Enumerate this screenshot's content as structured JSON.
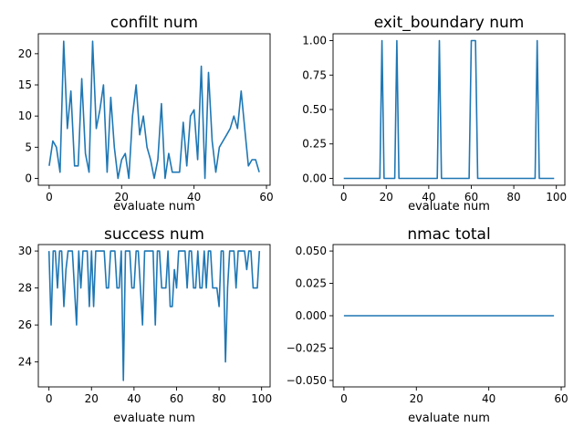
{
  "chart_data": [
    {
      "type": "line",
      "title": "confilt num",
      "xlabel": "evaluate num",
      "ylabel": "",
      "xlim": [
        -3,
        61
      ],
      "ylim": [
        -1.1,
        23.2
      ],
      "xticks": [
        0,
        20,
        40,
        60
      ],
      "yticks": [
        0,
        5,
        10,
        15,
        20
      ],
      "ytick_labels": [
        "0",
        "5",
        "10",
        "15",
        "20"
      ],
      "grid": false,
      "series": [
        {
          "name": "",
          "color": "#1f77b4",
          "x": [
            0,
            1,
            2,
            3,
            4,
            5,
            6,
            7,
            8,
            9,
            10,
            11,
            12,
            13,
            14,
            15,
            16,
            17,
            18,
            19,
            20,
            21,
            22,
            23,
            24,
            25,
            26,
            27,
            28,
            29,
            30,
            31,
            32,
            33,
            34,
            35,
            36,
            37,
            38,
            39,
            40,
            41,
            42,
            43,
            44,
            45,
            46,
            47,
            48,
            49,
            50,
            51,
            52,
            53,
            54,
            55,
            56,
            57,
            58
          ],
          "values": [
            2,
            6,
            5,
            1,
            22,
            8,
            14,
            2,
            2,
            16,
            4,
            1,
            22,
            8,
            11,
            15,
            1,
            13,
            5,
            0,
            3,
            4,
            0,
            10,
            15,
            7,
            10,
            5,
            3,
            0,
            3,
            12,
            0,
            4,
            1,
            1,
            1,
            9,
            2,
            10,
            11,
            3,
            18,
            0,
            17,
            6,
            1,
            5,
            6,
            7,
            8,
            10,
            8,
            14,
            8,
            2,
            3,
            3,
            1
          ]
        }
      ]
    },
    {
      "type": "line",
      "title": "exit_boundary num",
      "xlabel": "evaluate num",
      "ylabel": "",
      "xlim": [
        -5,
        104
      ],
      "ylim": [
        -0.05,
        1.05
      ],
      "xticks": [
        0,
        20,
        40,
        60,
        80,
        100
      ],
      "yticks": [
        0,
        0.25,
        0.5,
        0.75,
        1.0
      ],
      "ytick_labels": [
        "0.00",
        "0.25",
        "0.50",
        "0.75",
        "1.00"
      ],
      "grid": false,
      "series": [
        {
          "name": "",
          "color": "#1f77b4",
          "x": [
            0,
            17,
            18,
            19,
            24,
            25,
            26,
            44,
            45,
            46,
            59,
            60,
            62,
            63,
            90,
            91,
            92,
            99
          ],
          "values": [
            0,
            0,
            1,
            0,
            0,
            1,
            0,
            0,
            1,
            0,
            0,
            1,
            1,
            0,
            0,
            1,
            0,
            0
          ]
        }
      ]
    },
    {
      "type": "line",
      "title": "success num",
      "xlabel": "evaluate num",
      "ylabel": "",
      "xlim": [
        -5,
        104
      ],
      "ylim": [
        22.65,
        30.35
      ],
      "xticks": [
        0,
        20,
        40,
        60,
        80,
        100
      ],
      "yticks": [
        24,
        26,
        28,
        30
      ],
      "ytick_labels": [
        "24",
        "26",
        "28",
        "30"
      ],
      "grid": false,
      "series": [
        {
          "name": "",
          "color": "#1f77b4",
          "x": [
            0,
            1,
            2,
            3,
            4,
            5,
            6,
            7,
            8,
            9,
            10,
            11,
            12,
            13,
            14,
            15,
            16,
            17,
            18,
            19,
            20,
            21,
            22,
            23,
            24,
            25,
            26,
            27,
            28,
            29,
            30,
            31,
            32,
            33,
            34,
            35,
            36,
            37,
            38,
            39,
            40,
            41,
            42,
            43,
            44,
            45,
            46,
            47,
            48,
            49,
            50,
            51,
            52,
            53,
            54,
            55,
            56,
            57,
            58,
            59,
            60,
            61,
            62,
            63,
            64,
            65,
            66,
            67,
            68,
            69,
            70,
            71,
            72,
            73,
            74,
            75,
            76,
            77,
            78,
            79,
            80,
            81,
            82,
            83,
            84,
            85,
            86,
            87,
            88,
            89,
            90,
            91,
            92,
            93,
            94,
            95,
            96,
            97,
            98,
            99
          ],
          "values": [
            30,
            26,
            30,
            30,
            28,
            30,
            30,
            27,
            29,
            30,
            30,
            30,
            28,
            26,
            30,
            28,
            30,
            30,
            30,
            27,
            30,
            27,
            30,
            30,
            30,
            30,
            30,
            28,
            28,
            30,
            30,
            30,
            28,
            28,
            30,
            23,
            30,
            30,
            30,
            28,
            28,
            30,
            30,
            28,
            26,
            30,
            30,
            30,
            30,
            30,
            26,
            30,
            30,
            28,
            28,
            28,
            30,
            27,
            27,
            29,
            28,
            30,
            30,
            30,
            30,
            28,
            30,
            30,
            28,
            28,
            30,
            28,
            28,
            30,
            28,
            30,
            30,
            28,
            28,
            28,
            27,
            30,
            30,
            24,
            28,
            30,
            30,
            30,
            28,
            30,
            30,
            30,
            30,
            29,
            30,
            30,
            28,
            28,
            28,
            30
          ]
        }
      ]
    },
    {
      "type": "line",
      "title": "nmac total",
      "xlabel": "evaluate num",
      "ylabel": "",
      "xlim": [
        -3,
        61
      ],
      "ylim": [
        -0.055,
        0.055
      ],
      "xticks": [
        0,
        20,
        40,
        60
      ],
      "yticks": [
        -0.05,
        -0.025,
        0,
        0.025,
        0.05
      ],
      "ytick_labels": [
        "−0.050",
        "−0.025",
        "0.000",
        "0.025",
        "0.050"
      ],
      "grid": false,
      "series": [
        {
          "name": "",
          "color": "#1f77b4",
          "x": [
            0,
            58
          ],
          "values": [
            0,
            0
          ]
        }
      ]
    }
  ]
}
